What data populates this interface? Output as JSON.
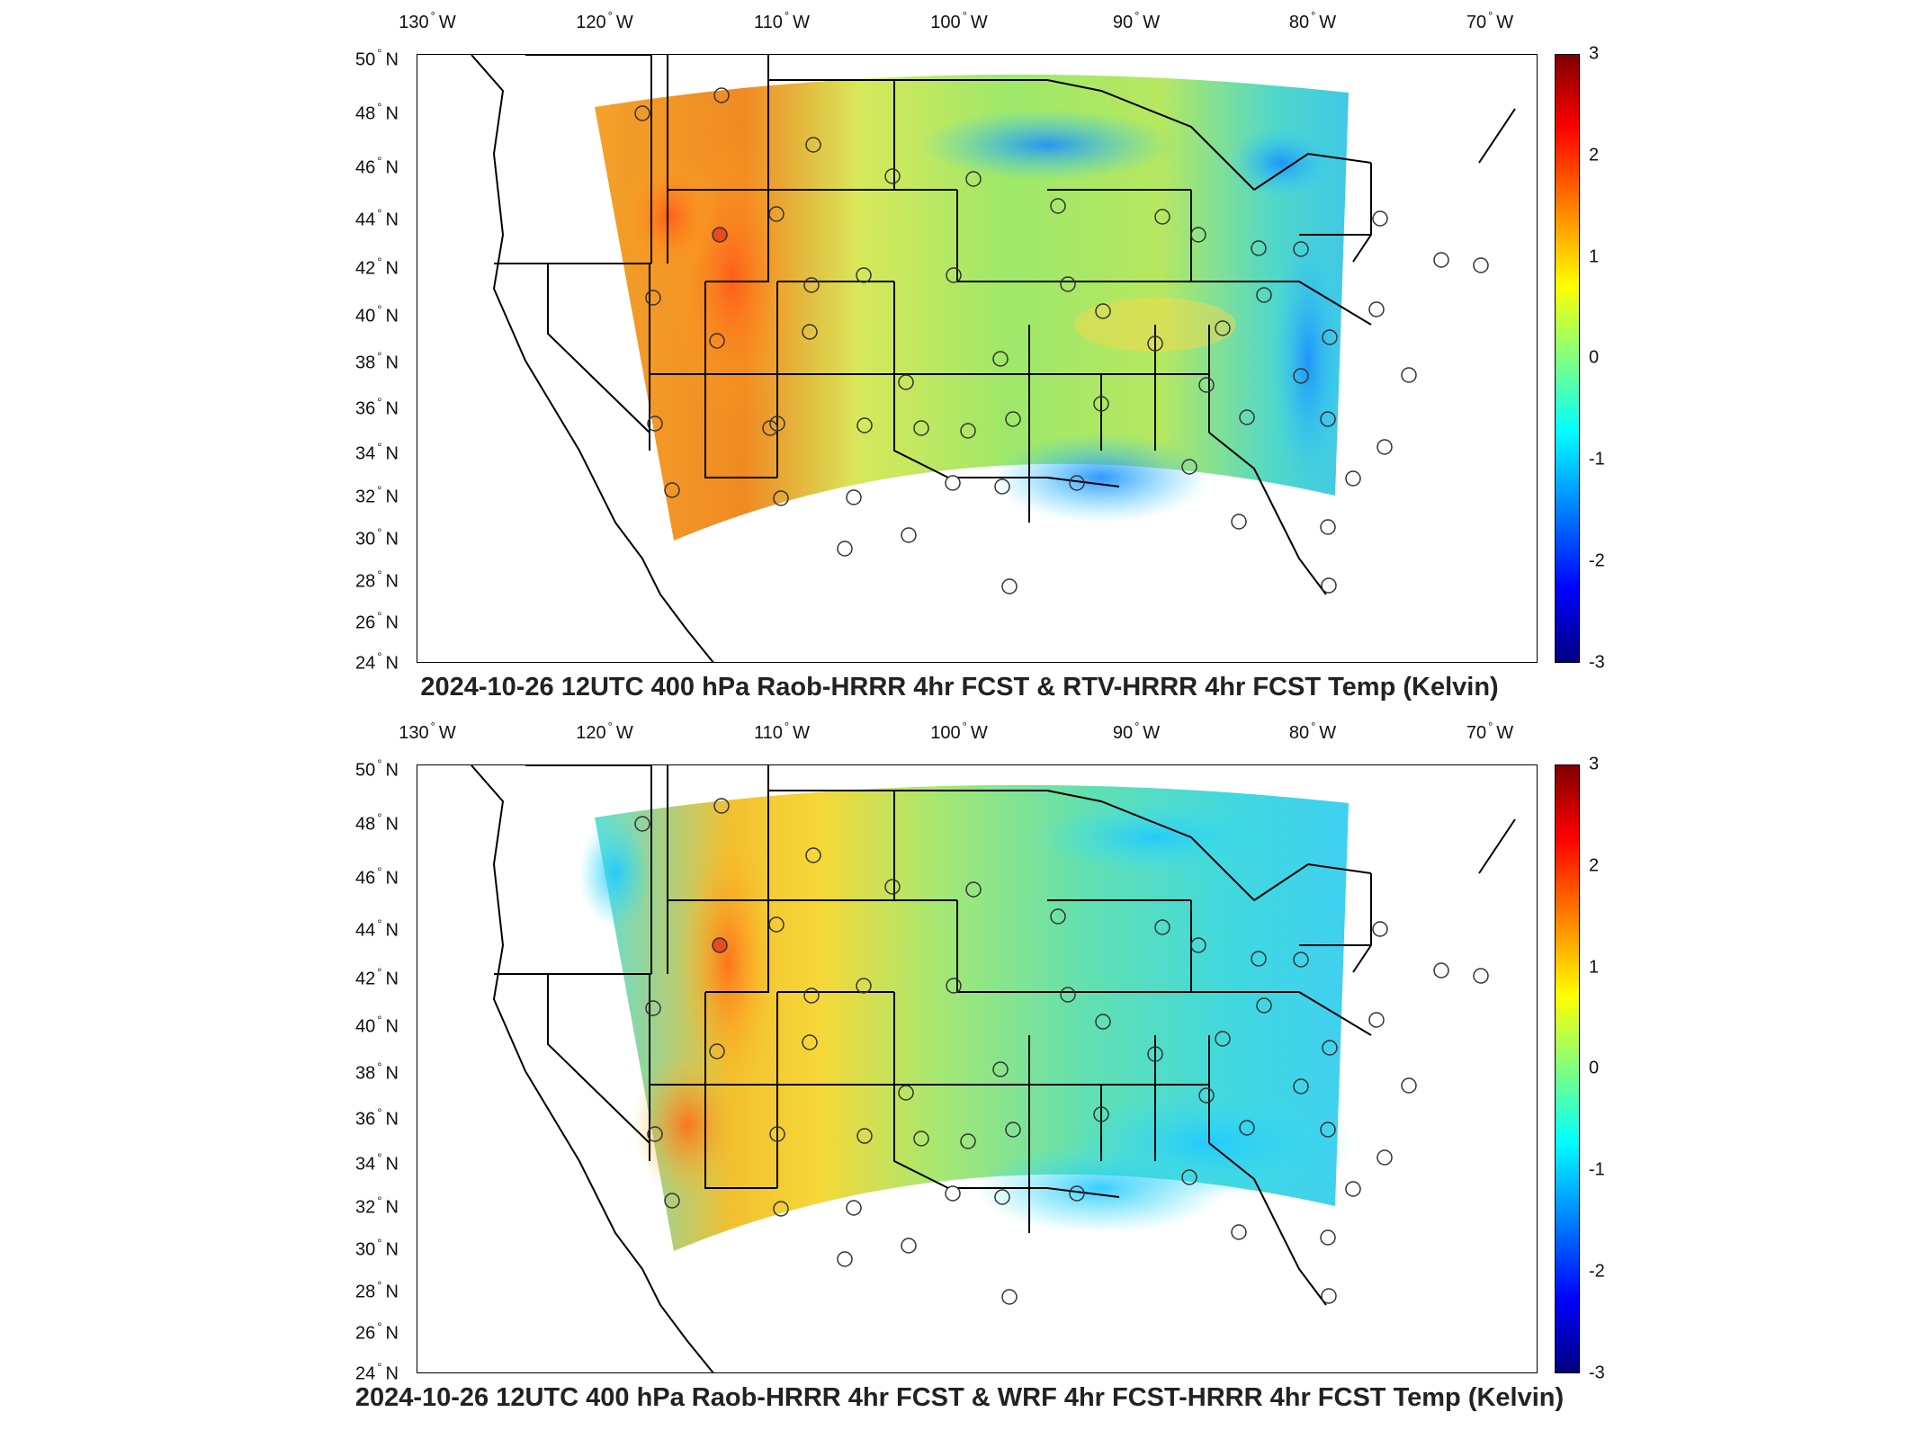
{
  "panels": [
    {
      "title": "2024-10-26 12UTC 400 hPa Raob-HRRR 4hr FCST & RTV-HRRR 4hr FCST Temp (Kelvin)"
    },
    {
      "title": "2024-10-26 12UTC 400 hPa Raob-HRRR 4hr FCST & WRF 4hr FCST-HRRR 4hr FCST Temp (Kelvin)"
    }
  ],
  "lon_ticks": [
    "130",
    "120",
    "110",
    "100",
    "90",
    "80",
    "70"
  ],
  "lon_suffix": "W",
  "lat_ticks": [
    "50",
    "48",
    "46",
    "44",
    "42",
    "40",
    "38",
    "36",
    "34",
    "32",
    "30",
    "28",
    "26",
    "24"
  ],
  "lat_suffix": "N",
  "colorbar": {
    "ticks": [
      "3",
      "2",
      "1",
      "0",
      "-1",
      "-2",
      "-3"
    ],
    "colors": [
      "#7f0000",
      "#ff0000",
      "#ff8000",
      "#ffff00",
      "#80ff80",
      "#00ffff",
      "#0080ff",
      "#0000ff",
      "#00007f"
    ]
  }
}
